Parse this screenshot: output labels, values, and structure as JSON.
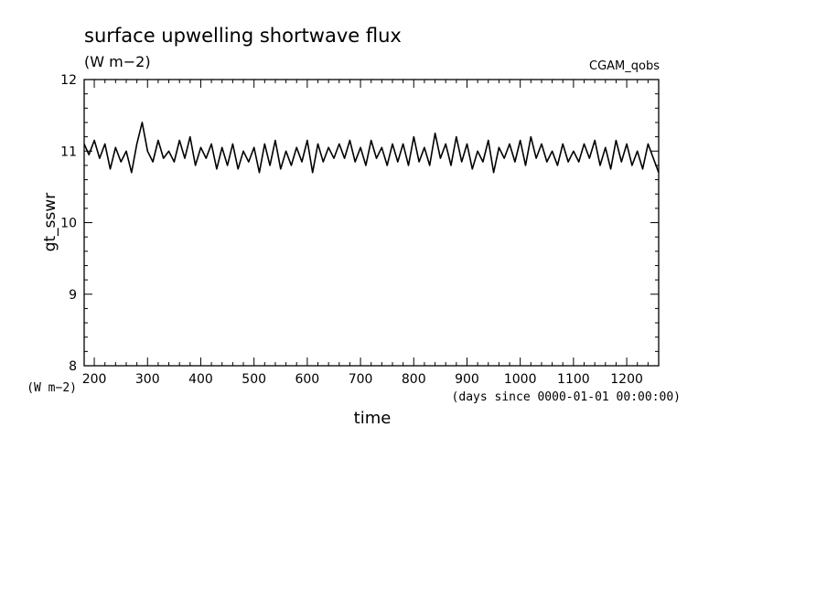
{
  "chart_data": {
    "type": "line",
    "title": "surface upwelling shortwave flux",
    "subtitle": "(W m−2)",
    "dataset_label": "CGAM_qobs",
    "xlabel": "time",
    "x_unit": "(days since 0000-01-01 00:00:00)",
    "ylabel": "gt_sswr",
    "y_unit": "(W m−2)",
    "xlim": [
      181,
      1260
    ],
    "ylim": [
      8,
      12
    ],
    "x_ticks": [
      200,
      300,
      400,
      500,
      600,
      700,
      800,
      900,
      1000,
      1100,
      1200
    ],
    "y_ticks": [
      8,
      9,
      10,
      11,
      12
    ],
    "grid": false,
    "series": [
      {
        "color": "#000000",
        "x": [
          181,
          190,
          200,
          210,
          220,
          230,
          240,
          250,
          260,
          270,
          280,
          290,
          300,
          310,
          320,
          330,
          340,
          350,
          360,
          370,
          380,
          390,
          400,
          410,
          420,
          430,
          440,
          450,
          460,
          470,
          480,
          490,
          500,
          510,
          520,
          530,
          540,
          550,
          560,
          570,
          580,
          590,
          600,
          610,
          620,
          630,
          640,
          650,
          660,
          670,
          680,
          690,
          700,
          710,
          720,
          730,
          740,
          750,
          760,
          770,
          780,
          790,
          800,
          810,
          820,
          830,
          840,
          850,
          860,
          870,
          880,
          890,
          900,
          910,
          920,
          930,
          940,
          950,
          960,
          970,
          980,
          990,
          1000,
          1010,
          1020,
          1030,
          1040,
          1050,
          1060,
          1070,
          1080,
          1090,
          1100,
          1110,
          1120,
          1130,
          1140,
          1150,
          1160,
          1170,
          1180,
          1190,
          1200,
          1210,
          1220,
          1230,
          1240,
          1250,
          1260
        ],
        "y": [
          11.1,
          10.95,
          11.15,
          10.9,
          11.1,
          10.75,
          11.05,
          10.85,
          11.0,
          10.7,
          11.1,
          11.4,
          11.0,
          10.85,
          11.15,
          10.9,
          11.0,
          10.85,
          11.15,
          10.9,
          11.2,
          10.8,
          11.05,
          10.9,
          11.1,
          10.75,
          11.05,
          10.8,
          11.1,
          10.75,
          11.0,
          10.85,
          11.05,
          10.7,
          11.1,
          10.8,
          11.15,
          10.75,
          11.0,
          10.8,
          11.05,
          10.85,
          11.15,
          10.7,
          11.1,
          10.85,
          11.05,
          10.9,
          11.1,
          10.9,
          11.15,
          10.85,
          11.05,
          10.8,
          11.15,
          10.9,
          11.05,
          10.8,
          11.1,
          10.85,
          11.1,
          10.8,
          11.2,
          10.85,
          11.05,
          10.8,
          11.25,
          10.9,
          11.1,
          10.8,
          11.2,
          10.85,
          11.1,
          10.75,
          11.0,
          10.85,
          11.15,
          10.7,
          11.05,
          10.9,
          11.1,
          10.85,
          11.15,
          10.8,
          11.2,
          10.9,
          11.1,
          10.85,
          11.0,
          10.8,
          11.1,
          10.85,
          11.0,
          10.85,
          11.1,
          10.9,
          11.15,
          10.8,
          11.05,
          10.75,
          11.15,
          10.85,
          11.1,
          10.8,
          11.0,
          10.75,
          11.1,
          10.9,
          10.7
        ]
      }
    ]
  }
}
